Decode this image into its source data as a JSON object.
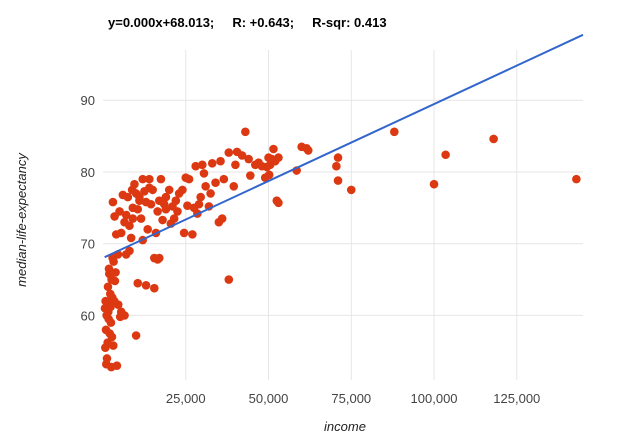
{
  "chart_data": {
    "type": "scatter",
    "title": "y=0.000x+68.013;     R: +0.643;     R-sqr: 0.413",
    "xlabel": "income",
    "ylabel": "median-life-expectancy",
    "xlim": [
      0,
      145000
    ],
    "ylim": [
      51,
      97
    ],
    "x_ticks": [
      25000,
      50000,
      75000,
      100000,
      125000
    ],
    "x_tick_labels": [
      "25,000",
      "50,000",
      "75,000",
      "100,000",
      "125,000"
    ],
    "y_ticks": [
      60,
      70,
      80,
      90
    ],
    "y_tick_labels": [
      "60",
      "70",
      "80",
      "90"
    ],
    "grid": true,
    "point_color": "#dc3912",
    "trend_color": "#3366cc",
    "trendline": {
      "slope": 0.0002145,
      "intercept": 68.013
    },
    "points": [
      [
        143000,
        79.0
      ],
      [
        118000,
        84.6
      ],
      [
        103500,
        82.4
      ],
      [
        100000,
        78.3
      ],
      [
        88000,
        85.6
      ],
      [
        75000,
        77.5
      ],
      [
        71000,
        82.0
      ],
      [
        71000,
        78.8
      ],
      [
        70500,
        80.8
      ],
      [
        62000,
        83.0
      ],
      [
        61500,
        83.3
      ],
      [
        60000,
        83.5
      ],
      [
        58500,
        80.2
      ],
      [
        53000,
        75.7
      ],
      [
        52500,
        76.0
      ],
      [
        53000,
        82.0
      ],
      [
        52000,
        81.5
      ],
      [
        51500,
        83.2
      ],
      [
        51000,
        81.8
      ],
      [
        50500,
        81.0
      ],
      [
        50000,
        82.0
      ],
      [
        49500,
        80.7
      ],
      [
        49000,
        79.2
      ],
      [
        47000,
        81.3
      ],
      [
        46000,
        81.0
      ],
      [
        44000,
        81.8
      ],
      [
        43000,
        85.6
      ],
      [
        42000,
        82.3
      ],
      [
        40500,
        82.8
      ],
      [
        40000,
        81.0
      ],
      [
        38000,
        82.7
      ],
      [
        36500,
        79.0
      ],
      [
        35500,
        81.5
      ],
      [
        35000,
        73.0
      ],
      [
        36000,
        73.5
      ],
      [
        38000,
        65.0
      ],
      [
        39500,
        78.0
      ],
      [
        33000,
        81.2
      ],
      [
        32500,
        77.0
      ],
      [
        32000,
        75.2
      ],
      [
        30000,
        81.0
      ],
      [
        29500,
        76.5
      ],
      [
        29000,
        75.5
      ],
      [
        28500,
        74.2
      ],
      [
        28000,
        80.8
      ],
      [
        27000,
        71.3
      ],
      [
        26000,
        79.0
      ],
      [
        25000,
        79.2
      ],
      [
        24500,
        71.5
      ],
      [
        24000,
        77.5
      ],
      [
        23000,
        77.0
      ],
      [
        22000,
        76.0
      ],
      [
        21500,
        73.5
      ],
      [
        21000,
        75.2
      ],
      [
        20000,
        77.5
      ],
      [
        19000,
        76.5
      ],
      [
        18500,
        75.5
      ],
      [
        18000,
        73.3
      ],
      [
        17500,
        79.0
      ],
      [
        17000,
        76.0
      ],
      [
        16500,
        74.5
      ],
      [
        16000,
        71.5
      ],
      [
        15500,
        68.0
      ],
      [
        15000,
        77.5
      ],
      [
        14500,
        75.5
      ],
      [
        14000,
        79.0
      ],
      [
        13500,
        72.0
      ],
      [
        13000,
        75.8
      ],
      [
        12500,
        77.3
      ],
      [
        12000,
        79.0
      ],
      [
        11500,
        73.5
      ],
      [
        11000,
        76.5
      ],
      [
        10500,
        74.8
      ],
      [
        10000,
        77.0
      ],
      [
        9500,
        78.3
      ],
      [
        9000,
        75.0
      ],
      [
        8800,
        77.5
      ],
      [
        8500,
        70.8
      ],
      [
        8000,
        72.5
      ],
      [
        7500,
        76.5
      ],
      [
        7000,
        74.0
      ],
      [
        6500,
        73.0
      ],
      [
        6000,
        76.8
      ],
      [
        5500,
        71.5
      ],
      [
        5000,
        74.5
      ],
      [
        4500,
        68.5
      ],
      [
        4000,
        71.3
      ],
      [
        3800,
        66.0
      ],
      [
        3500,
        73.8
      ],
      [
        3200,
        67.5
      ],
      [
        3000,
        75.8
      ],
      [
        2800,
        62.5
      ],
      [
        2600,
        65.0
      ],
      [
        2400,
        59.0
      ],
      [
        2200,
        63.0
      ],
      [
        2000,
        57.5
      ],
      [
        1800,
        66.5
      ],
      [
        1600,
        60.5
      ],
      [
        1500,
        64.0
      ],
      [
        1400,
        56.2
      ],
      [
        1300,
        61.5
      ],
      [
        1200,
        54.0
      ],
      [
        1100,
        60.0
      ],
      [
        1000,
        53.2
      ],
      [
        900,
        58.0
      ],
      [
        800,
        62.0
      ],
      [
        700,
        55.5
      ],
      [
        600,
        61.0
      ],
      [
        4200,
        53.0
      ],
      [
        2500,
        52.8
      ],
      [
        5500,
        60.5
      ],
      [
        6500,
        60.0
      ],
      [
        10500,
        64.5
      ],
      [
        13000,
        64.2
      ],
      [
        15500,
        63.8
      ],
      [
        10000,
        57.2
      ],
      [
        16500,
        67.8
      ],
      [
        17000,
        68.0
      ],
      [
        12000,
        70.5
      ],
      [
        8000,
        69.0
      ],
      [
        7000,
        68.5
      ],
      [
        9000,
        73.5
      ],
      [
        11000,
        76.0
      ],
      [
        14000,
        77.8
      ],
      [
        19000,
        74.8
      ],
      [
        20500,
        72.8
      ],
      [
        22500,
        74.5
      ],
      [
        25500,
        75.3
      ],
      [
        27500,
        75.0
      ],
      [
        30500,
        79.8
      ],
      [
        31000,
        78.0
      ],
      [
        34000,
        78.5
      ],
      [
        44500,
        79.5
      ],
      [
        48000,
        80.8
      ],
      [
        50200,
        79.6
      ],
      [
        3400,
        62.0
      ],
      [
        3600,
        64.8
      ],
      [
        2900,
        68.0
      ],
      [
        4600,
        61.5
      ],
      [
        5200,
        59.8
      ],
      [
        1900,
        65.8
      ],
      [
        2300,
        61.2
      ],
      [
        2700,
        57.0
      ],
      [
        3100,
        55.8
      ],
      [
        1700,
        59.5
      ]
    ]
  }
}
